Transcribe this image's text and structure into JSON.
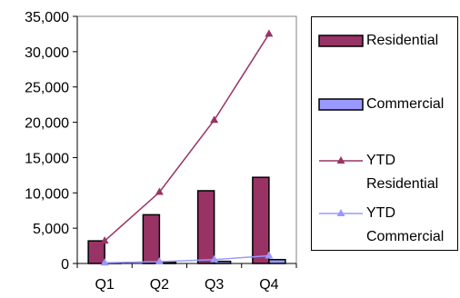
{
  "chart_data": {
    "type": "bar",
    "categories": [
      "Q1",
      "Q2",
      "Q3",
      "Q4"
    ],
    "ylim": [
      0,
      35000
    ],
    "yticks": [
      {
        "value": 0,
        "label": "0"
      },
      {
        "value": 5000,
        "label": "5,000"
      },
      {
        "value": 10000,
        "label": "10,000"
      },
      {
        "value": 15000,
        "label": "15,000"
      },
      {
        "value": 20000,
        "label": "20,000"
      },
      {
        "value": 25000,
        "label": "25,000"
      },
      {
        "value": 30000,
        "label": "30,000"
      },
      {
        "value": 35000,
        "label": "35,000"
      }
    ],
    "grid": false,
    "legend_position": "right",
    "series": [
      {
        "name": "Residential",
        "kind": "bar",
        "color": "#993366",
        "values": [
          3200,
          6900,
          10300,
          12200
        ]
      },
      {
        "name": "Commercial",
        "kind": "bar",
        "color": "#9999FF",
        "values": [
          100,
          150,
          300,
          550
        ]
      },
      {
        "name_lines": [
          "YTD",
          "Residential"
        ],
        "kind": "line",
        "marker": "triangle",
        "color": "#993366",
        "values": [
          3200,
          10100,
          20300,
          32500
        ]
      },
      {
        "name_lines": [
          "YTD",
          "Commercial"
        ],
        "kind": "line",
        "marker": "triangle",
        "color": "#9999FF",
        "values": [
          100,
          250,
          550,
          1100
        ]
      }
    ]
  },
  "legend": {
    "residential": "Residential",
    "commercial": "Commercial",
    "ytd_residential_1": "YTD",
    "ytd_residential_2": "Residential",
    "ytd_commercial_1": "YTD",
    "ytd_commercial_2": "Commercial"
  }
}
